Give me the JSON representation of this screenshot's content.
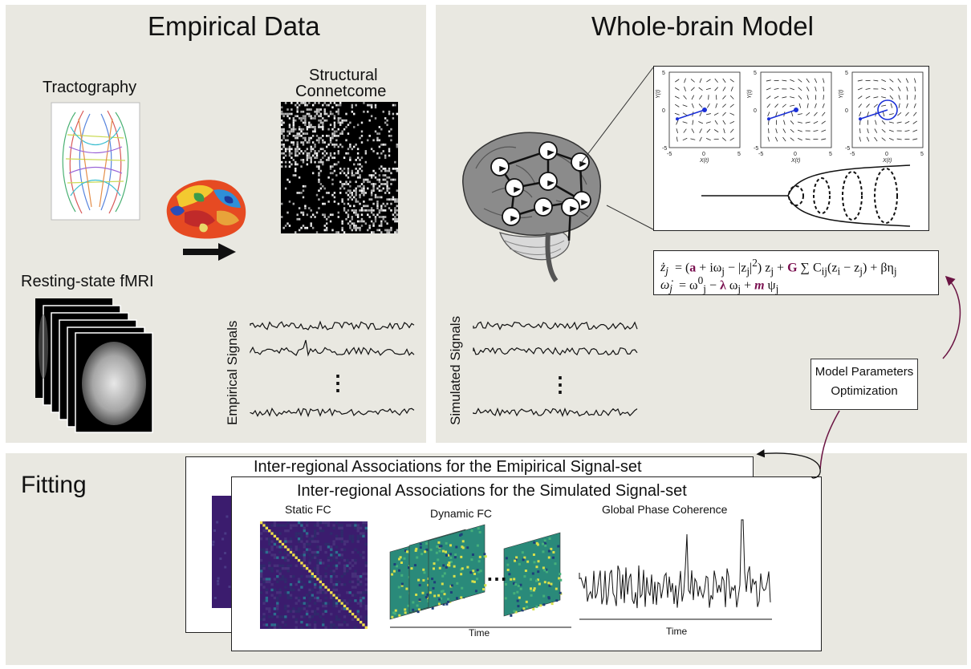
{
  "empirical": {
    "title": "Empirical Data",
    "tractography": "Tractography",
    "structural_line1": "Structural",
    "structural_line2": "Connetcome",
    "fmri": "Resting-state fMRI",
    "signals_label": "Empirical Signals",
    "ellipsis": "⋮"
  },
  "model": {
    "title": "Whole-brain Model",
    "signals_label": "Simulated Signals",
    "ellipsis": "⋮",
    "phase_axis_x": "X(t)",
    "phase_axis_y": "Y(t)",
    "phase_ticks": [
      "-5",
      "0",
      "5"
    ],
    "equation": {
      "line1_lhs": "ż",
      "line1_sub": "j",
      "line2_lhs": "ω̇",
      "line2_sub": "j"
    },
    "params": [
      "a",
      "G",
      "λ",
      "m"
    ]
  },
  "optimization": {
    "line1": "Model Parameters",
    "line2": "Optimization"
  },
  "fitting": {
    "title": "Fitting",
    "back_card_title": "Inter-regional Associations for the Emipirical Signal-set",
    "front_card_title": "Inter-regional Associations for the Simulated Signal-set",
    "static_fc": "Static FC",
    "dynamic_fc": "Dynamic FC",
    "global_phase": "Global Phase Coherence",
    "time_label_1": "Time",
    "time_label_2": "Time",
    "dots": "⋯"
  },
  "colors": {
    "panel_bg": "#e9e8e1",
    "parameter": "#7a1050",
    "arrow": "#6b1443",
    "fc_background": "#3b1c6e"
  }
}
